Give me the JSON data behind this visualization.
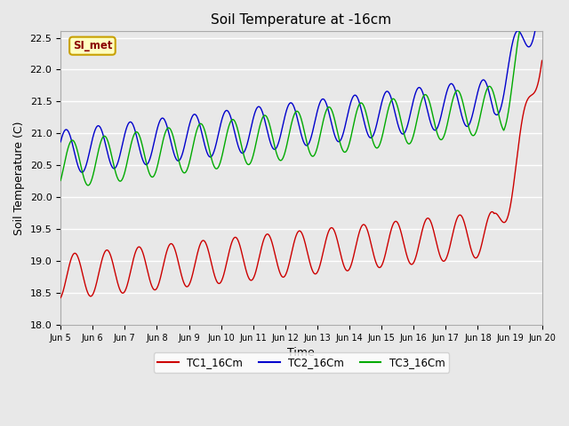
{
  "title": "Soil Temperature at -16cm",
  "xlabel": "Time",
  "ylabel": "Soil Temperature (C)",
  "ylim": [
    18.0,
    22.6
  ],
  "annotation_text": "SI_met",
  "annotation_color": "#8B0000",
  "annotation_bg": "#FFFFC0",
  "annotation_border": "#C8A000",
  "plot_bg_color": "#E8E8E8",
  "grid_color": "white",
  "line_colors": {
    "TC1": "#CC0000",
    "TC2": "#0000CC",
    "TC3": "#00AA00"
  },
  "legend_labels": [
    "TC1_16Cm",
    "TC2_16Cm",
    "TC3_16Cm"
  ],
  "n_points": 1500,
  "days_total": 15
}
